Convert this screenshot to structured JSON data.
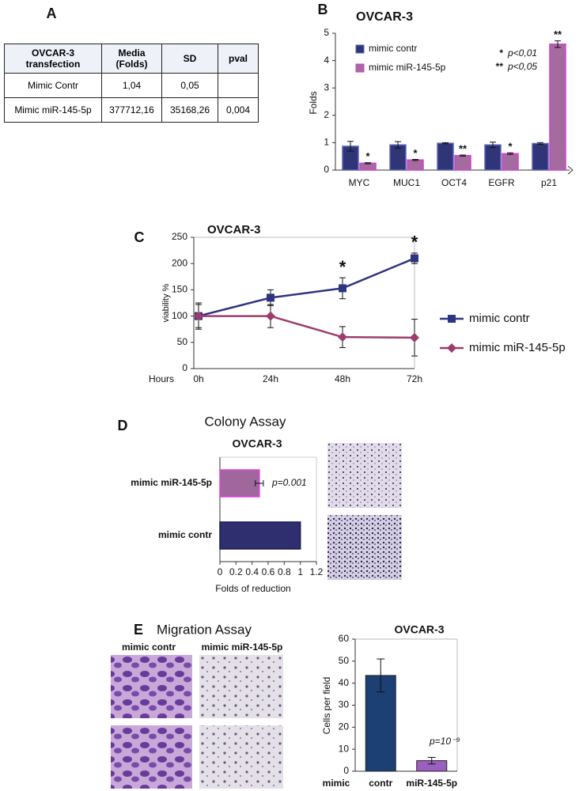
{
  "panel_labels": [
    "A",
    "B",
    "C",
    "D",
    "E"
  ],
  "table": {
    "header": [
      "OVCAR-3 transfection",
      "Media (Folds)",
      "SD",
      "pval"
    ],
    "rows": [
      [
        "Mimic Contr",
        "1,04",
        "0,05",
        ""
      ],
      [
        "Mimic miR-145-5p",
        "377712,16",
        "35168,26",
        "0,004"
      ]
    ]
  },
  "images": {
    "colony_title": "Colony Assay",
    "migration_title": "Migration Assay",
    "migration_columns": [
      "mimic contr",
      "mimic miR-145-5p"
    ]
  },
  "chart_data": [
    {
      "type": "bar",
      "title": "OVCAR-3",
      "y_label": "Folds",
      "categories": [
        "MYC",
        "MUC1",
        "OCT4",
        "EGFR",
        "p21"
      ],
      "series": [
        {
          "name": "mimic contr",
          "color": "#2f3576",
          "values": [
            0.87,
            0.92,
            0.98,
            0.92,
            0.97
          ],
          "errors": [
            0.18,
            0.12,
            0.02,
            0.1,
            0.03
          ]
        },
        {
          "name": "mimic miR-145-5p",
          "color": "#a36b9e",
          "values": [
            0.25,
            0.37,
            0.53,
            0.6,
            4.6
          ],
          "errors": [
            0.02,
            0.02,
            0.02,
            0.03,
            0.12
          ],
          "significance": [
            "*",
            "*",
            "**",
            "*",
            "**"
          ]
        }
      ],
      "notes": [
        {
          "symbol": "*",
          "text": "p<0,01"
        },
        {
          "symbol": "**",
          "text": "p<0,05"
        }
      ],
      "ylim": [
        0,
        5
      ],
      "yticks": [
        0,
        1,
        2,
        3,
        4,
        5
      ],
      "grid": false,
      "legend": "top-left"
    },
    {
      "type": "line",
      "title": "OVCAR-3",
      "y_label": "viability %",
      "x_label": "Hours",
      "categories": [
        "0h",
        "24h",
        "48h",
        "72h"
      ],
      "series": [
        {
          "name": "mimic contr",
          "color": "#2e3580",
          "marker": "square",
          "values": [
            100,
            135,
            153,
            210
          ],
          "errors": [
            25,
            15,
            20,
            10
          ],
          "significance": [
            null,
            null,
            "*",
            "*"
          ]
        },
        {
          "name": "mimic miR-145-5p",
          "color": "#9c3d6e",
          "marker": "diamond",
          "values": [
            100,
            100,
            60,
            59
          ],
          "errors": [
            22,
            22,
            20,
            35
          ]
        }
      ],
      "ylim": [
        0,
        250
      ],
      "yticks": [
        0,
        50,
        100,
        150,
        200,
        250
      ],
      "grid": false,
      "legend": "right"
    },
    {
      "type": "barh",
      "title": "OVCAR-3",
      "x_label": "Folds of reduction",
      "categories": [
        "mimic miR-145-5p",
        "mimic contr"
      ],
      "values": [
        0.49,
        1
      ],
      "errors": [
        0.05,
        0
      ],
      "colors": [
        "#a0679c",
        "#2f2e6e"
      ],
      "annotation": "p=0.001",
      "xlim": [
        0,
        1.2
      ],
      "xticks": [
        0,
        0.2,
        0.4,
        0.6,
        0.8,
        1,
        1.2
      ],
      "grid": false
    },
    {
      "type": "bar",
      "title": "OVCAR-3",
      "y_label": "Cells per field",
      "x_label": "mimic",
      "categories": [
        "contr",
        "miR-145-5p"
      ],
      "values": [
        43.5,
        4.8
      ],
      "errors": [
        7.5,
        1.5
      ],
      "colors": [
        "#1c3f74",
        "#9b5fc0"
      ],
      "annotation": "p=10⁻⁹",
      "ylim": [
        0,
        60
      ],
      "yticks": [
        0,
        10,
        20,
        30,
        40,
        50,
        60
      ],
      "grid": false
    }
  ]
}
